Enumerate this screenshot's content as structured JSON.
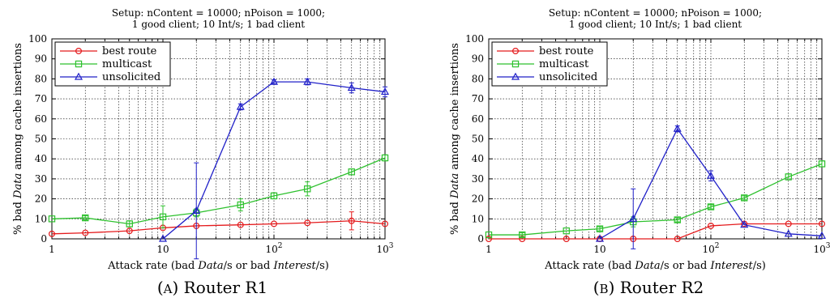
{
  "chart_data": [
    {
      "type": "line",
      "title": [
        "Setup: nContent = 10000; nPoison = 1000;",
        "1 good client; 10 Int/s; 1 bad client"
      ],
      "xlabel": "Attack rate (bad Data/s or bad Interest/s)",
      "ylabel": "% bad Data among cache insertions",
      "xscale": "log",
      "xlim": [
        1,
        1000
      ],
      "ylim": [
        0,
        100
      ],
      "grid": true,
      "legend_position": "top-left",
      "x_tick_labels": [
        "1",
        "10",
        "10^2",
        "10^3"
      ],
      "y_tick_labels": [
        "0",
        "10",
        "20",
        "30",
        "40",
        "50",
        "60",
        "70",
        "80",
        "90",
        "100"
      ],
      "caption": "(A) Router R1",
      "series": [
        {
          "name": "best route",
          "color": "#e41a1c",
          "marker": "circle",
          "x": [
            1,
            2,
            5,
            10,
            20,
            50,
            100,
            200,
            500,
            1000
          ],
          "y": [
            2.5,
            3,
            4,
            5.5,
            6.5,
            7,
            7.5,
            8,
            9,
            7.5
          ],
          "err": [
            0,
            0,
            0,
            0,
            0,
            0,
            0,
            0,
            4.5,
            0
          ]
        },
        {
          "name": "multicast",
          "color": "#2ec12e",
          "marker": "square",
          "x": [
            1,
            2,
            5,
            10,
            20,
            50,
            100,
            200,
            500,
            1000
          ],
          "y": [
            10,
            10.5,
            7.5,
            11,
            13,
            17,
            21.5,
            25,
            33.5,
            40.5
          ],
          "err": [
            0,
            1,
            1.5,
            5.5,
            2,
            3,
            1.5,
            3.5,
            1.5,
            1.5
          ]
        },
        {
          "name": "unsolicited",
          "color": "#2020c8",
          "marker": "triangle",
          "x": [
            10,
            20,
            50,
            100,
            200,
            500,
            1000
          ],
          "y": [
            0,
            14,
            66,
            78.5,
            78.5,
            75.5,
            73.5
          ],
          "err": [
            0,
            24,
            1.5,
            1,
            1.5,
            2.5,
            2.5
          ]
        }
      ]
    },
    {
      "type": "line",
      "title": [
        "Setup: nContent = 10000; nPoison = 1000;",
        "1 good client; 10 Int/s; 1 bad client"
      ],
      "xlabel": "Attack rate (bad Data/s or bad Interest/s)",
      "ylabel": "% bad Data among cache insertions",
      "xscale": "log",
      "xlim": [
        1,
        1000
      ],
      "ylim": [
        0,
        100
      ],
      "grid": true,
      "legend_position": "top-left",
      "x_tick_labels": [
        "1",
        "10",
        "10^2",
        "10^3"
      ],
      "y_tick_labels": [
        "0",
        "10",
        "20",
        "30",
        "40",
        "50",
        "60",
        "70",
        "80",
        "90",
        "100"
      ],
      "caption": "(B) Router R2",
      "series": [
        {
          "name": "best route",
          "color": "#e41a1c",
          "marker": "circle",
          "x": [
            1,
            2,
            5,
            10,
            20,
            50,
            100,
            200,
            500,
            1000
          ],
          "y": [
            0,
            0,
            0,
            0,
            0,
            0,
            6.5,
            7.5,
            7.5,
            7.5
          ],
          "err": [
            0,
            0,
            0,
            0,
            0,
            0,
            0,
            0,
            0,
            0
          ]
        },
        {
          "name": "multicast",
          "color": "#2ec12e",
          "marker": "square",
          "x": [
            1,
            2,
            5,
            10,
            20,
            50,
            100,
            200,
            500,
            1000
          ],
          "y": [
            2,
            2,
            4,
            5,
            8.5,
            9.5,
            16,
            20.5,
            31,
            37.5
          ],
          "err": [
            0,
            1,
            0,
            1,
            2.5,
            1,
            1,
            1,
            1.5,
            1.5
          ]
        },
        {
          "name": "unsolicited",
          "color": "#2020c8",
          "marker": "triangle",
          "x": [
            10,
            20,
            50,
            100,
            200,
            500,
            1000
          ],
          "y": [
            0,
            10,
            55,
            31.5,
            7,
            2.5,
            1.5
          ],
          "err": [
            0,
            15,
            1.5,
            2.5,
            0,
            0,
            0
          ]
        }
      ]
    }
  ]
}
